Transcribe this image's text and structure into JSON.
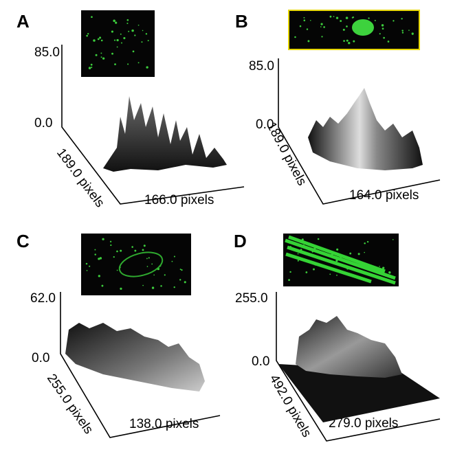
{
  "panels": [
    {
      "label": "A",
      "z_max": "85.0",
      "z_min": "0.0",
      "depth_axis": "189.0 pixels",
      "width_axis": "166.0 pixels"
    },
    {
      "label": "B",
      "z_max": "85.0",
      "z_min": "0.0",
      "depth_axis": "189.0 pixels",
      "width_axis": "164.0 pixels"
    },
    {
      "label": "C",
      "z_max": "62.0",
      "z_min": "0.0",
      "depth_axis": "255.0 pixels",
      "width_axis": "138.0 pixels"
    },
    {
      "label": "D",
      "z_max": "255.0",
      "z_min": "0.0",
      "depth_axis": "492.0 pixels",
      "width_axis": "279.0 pixels"
    }
  ]
}
